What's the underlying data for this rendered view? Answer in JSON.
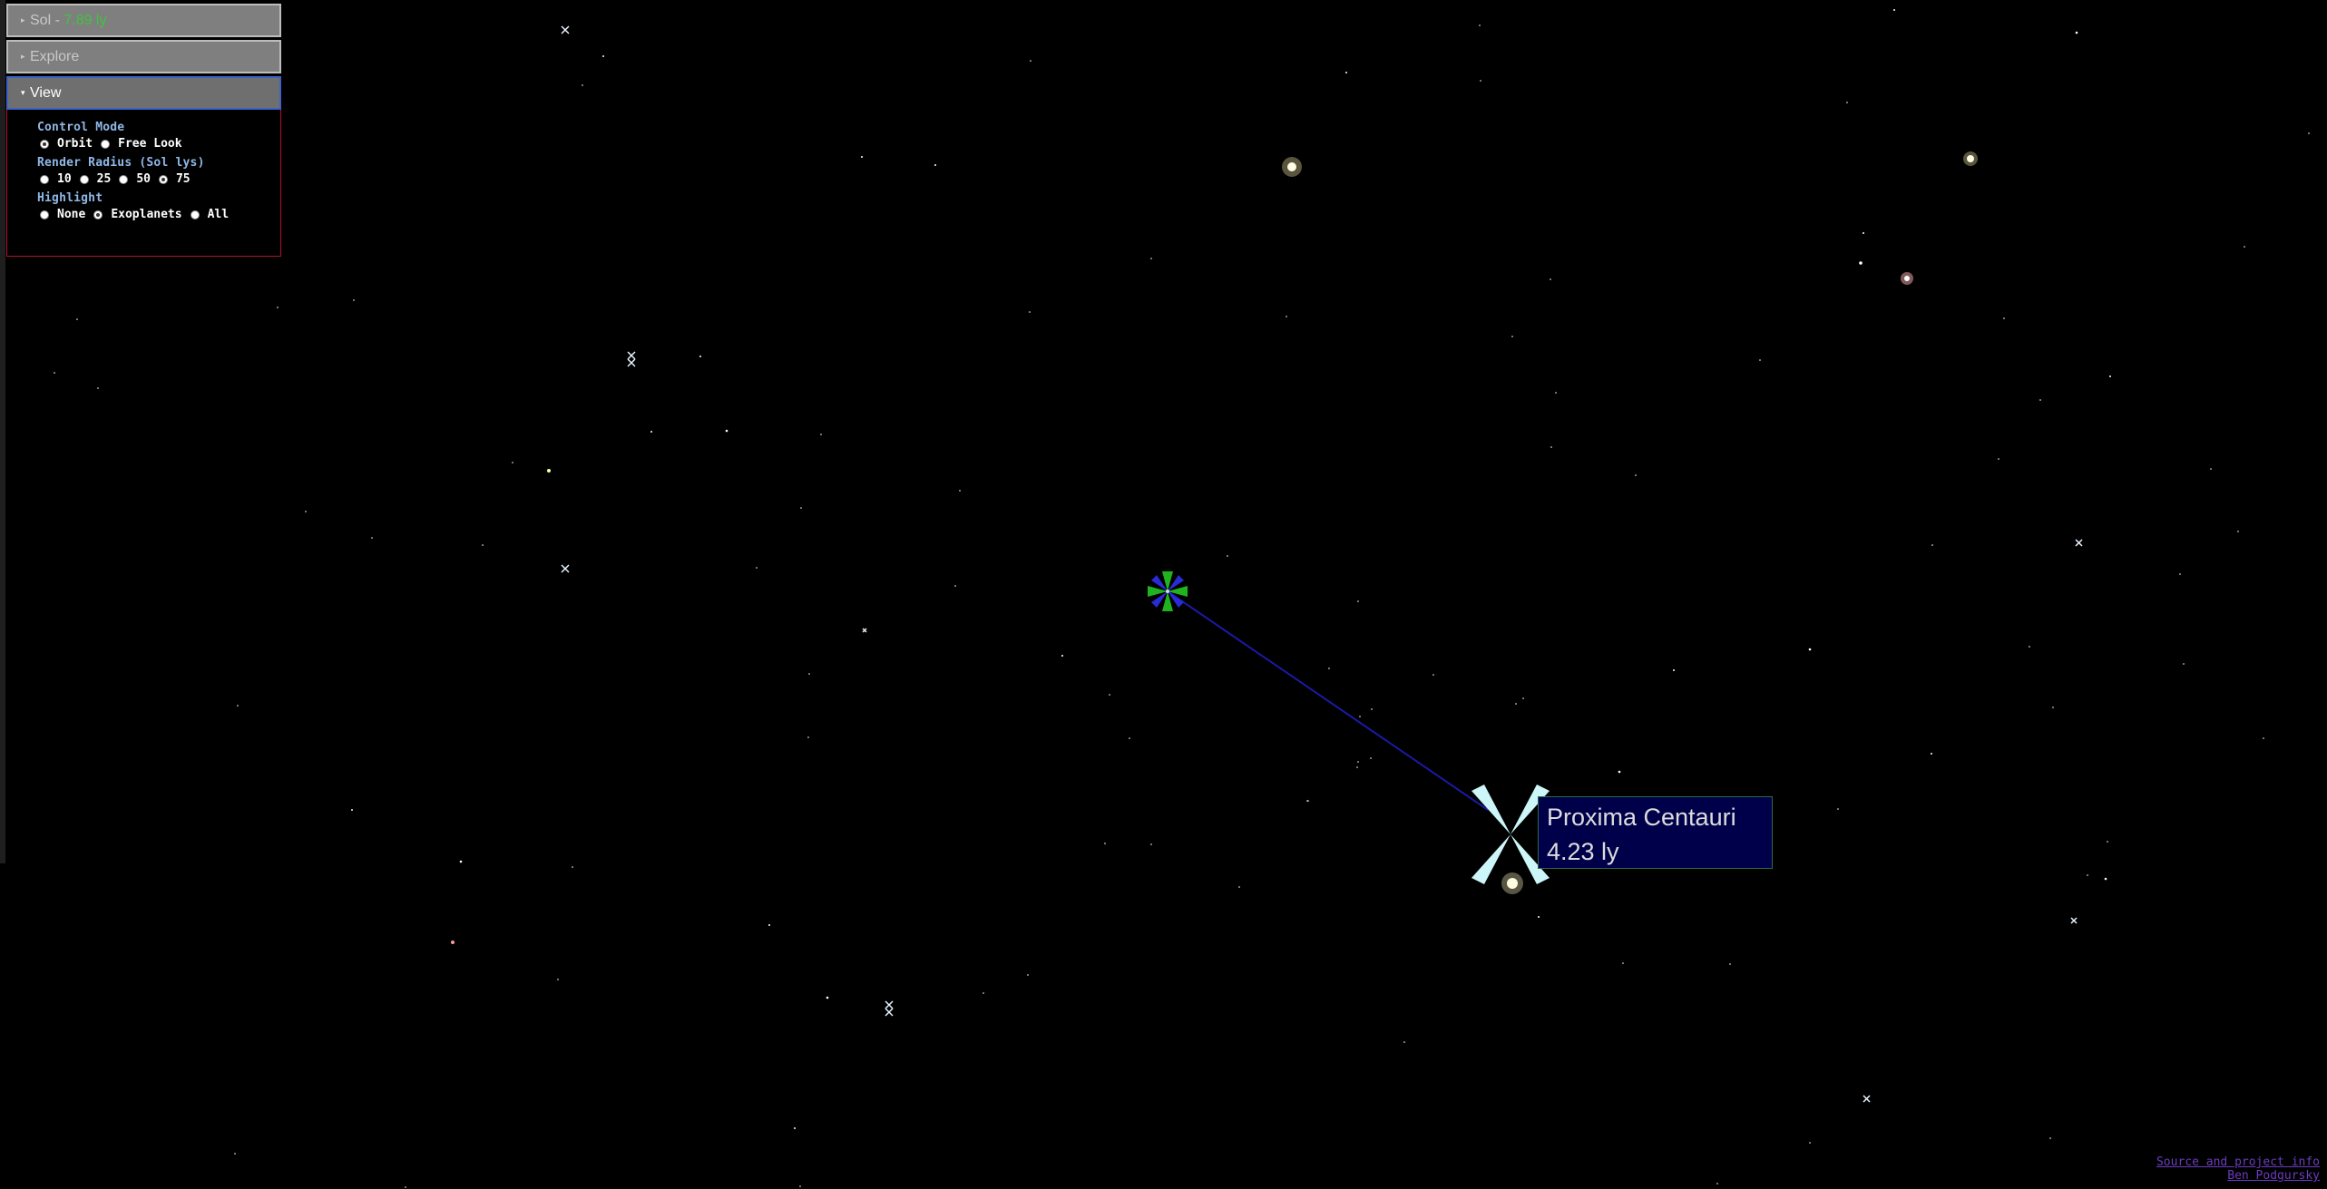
{
  "panel": {
    "sol_header": {
      "name": "Sol",
      "separator": " - ",
      "distance": "7.89 ly"
    },
    "explore_header": {
      "label": "Explore"
    },
    "view_header": {
      "label": "View"
    },
    "view": {
      "control_mode": {
        "label": "Control Mode",
        "options": [
          "Orbit",
          "Free Look"
        ],
        "selected": "Orbit"
      },
      "render_radius": {
        "label": "Render Radius (Sol lys)",
        "options": [
          "10",
          "25",
          "50",
          "75"
        ],
        "selected": "75"
      },
      "highlight": {
        "label": "Highlight",
        "options": [
          "None",
          "Exoplanets",
          "All"
        ],
        "selected": "Exoplanets"
      }
    }
  },
  "target": {
    "name": "Proxima Centauri",
    "distance": "4.23 ly"
  },
  "footer": {
    "source_link": "Source and project info",
    "author_link": "Ben Podgursky"
  },
  "colors": {
    "sol_distance": "#3fc43f",
    "label_bg": "#00004a",
    "target_line": "#1a1aa6",
    "section_label": "#8fb8e6",
    "link": "#6b3bbf"
  }
}
